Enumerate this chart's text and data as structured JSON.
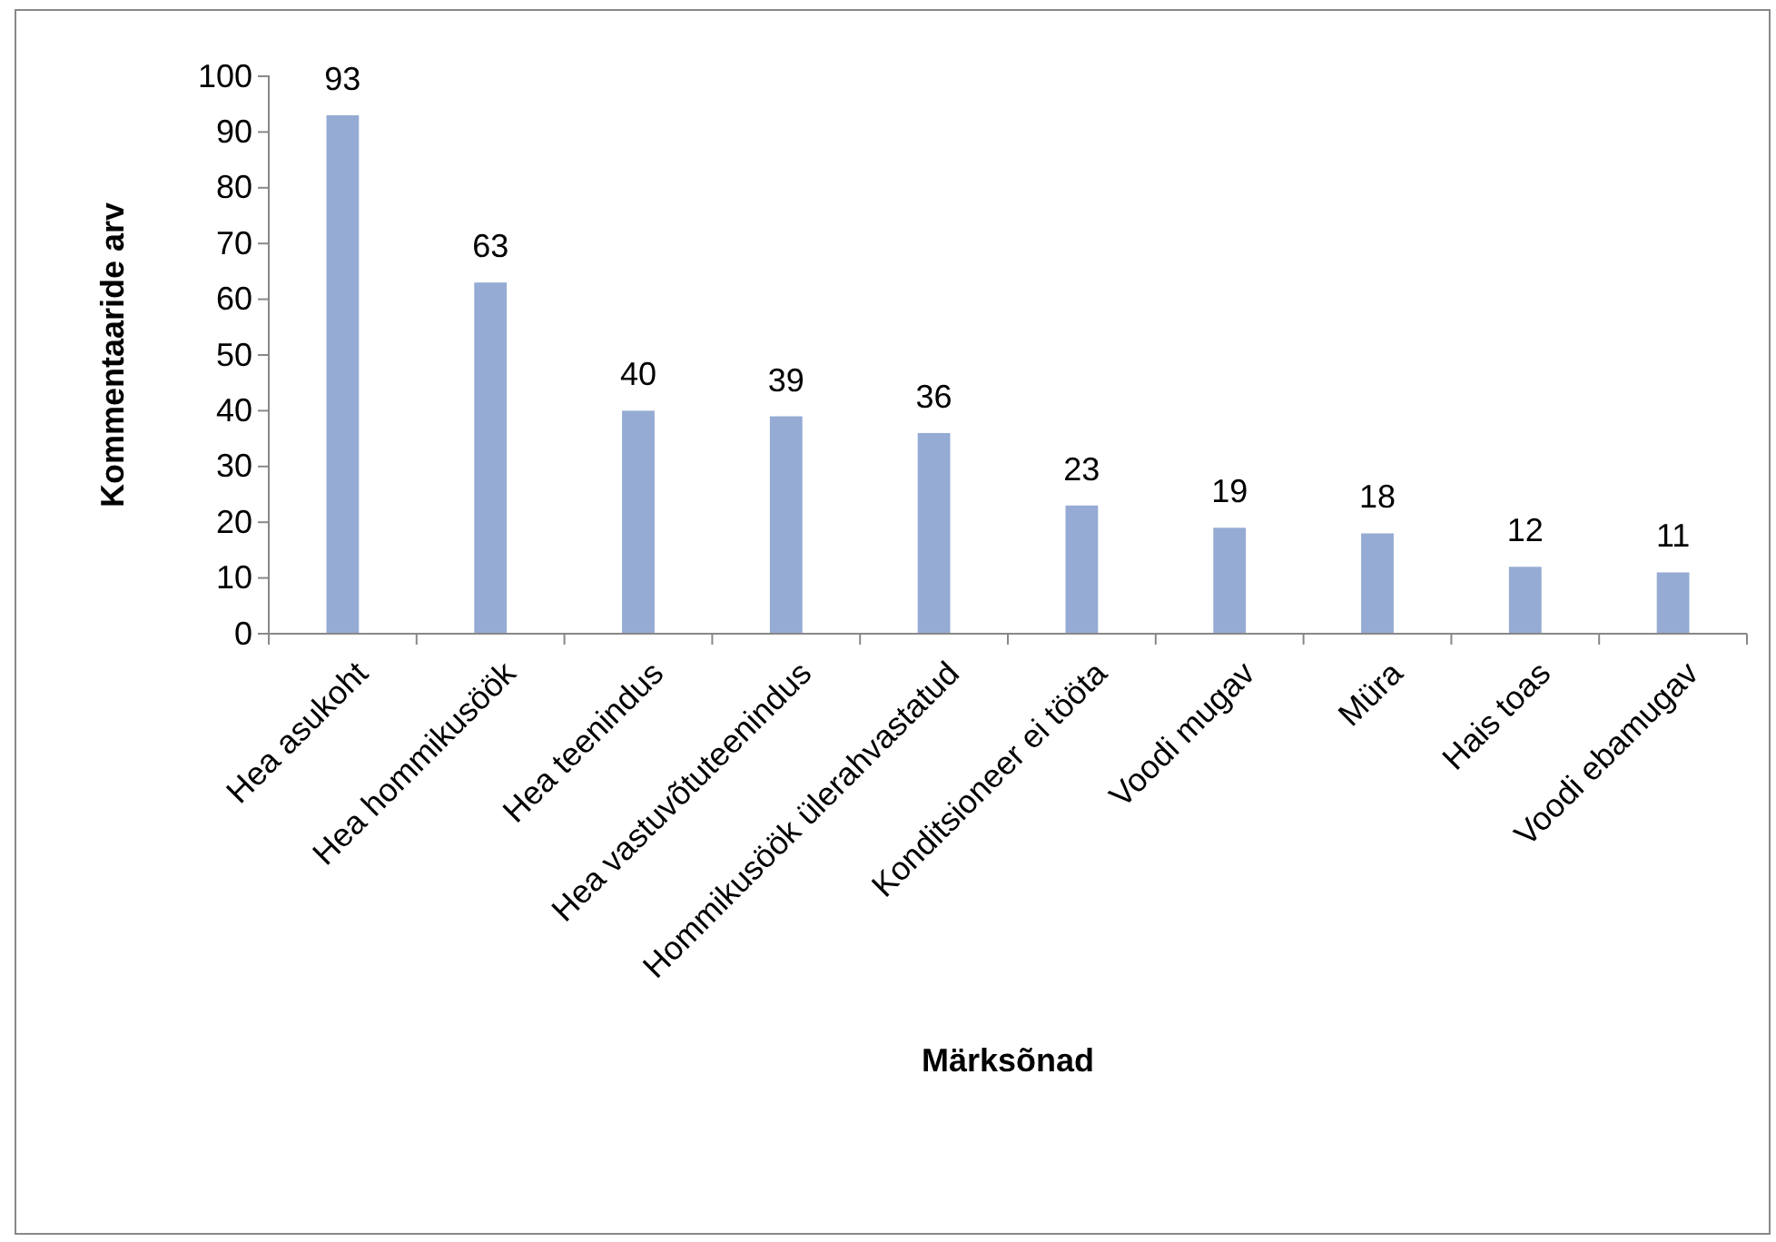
{
  "chart_data": {
    "type": "bar",
    "xlabel": "Märksõnad",
    "ylabel": "Kommentaaride arv",
    "categories": [
      "Hea asukoht",
      "Hea hommikusöök",
      "Hea teenindus",
      "Hea vastuvõtuteenindus",
      "Hommikusöök ülerahvastatud",
      "Konditsioneer ei tööta",
      "Voodi mugav",
      "Müra",
      "Hais toas",
      "Voodi ebamugav"
    ],
    "values": [
      93,
      63,
      40,
      39,
      36,
      23,
      19,
      18,
      12,
      11
    ],
    "color": "#95abd3",
    "ylim": [
      0,
      100
    ],
    "yticks": [
      0,
      10,
      20,
      30,
      40,
      50,
      60,
      70,
      80,
      90,
      100
    ],
    "grid": false,
    "data_labels": true
  }
}
